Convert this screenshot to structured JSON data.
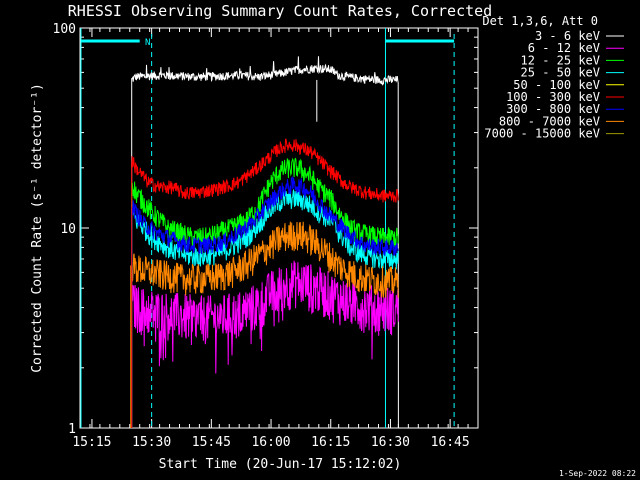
{
  "chart_data": {
    "type": "line",
    "title": "RHESSI Observing Summary Count Rates, Corrected",
    "xlabel": "Start Time (20-Jun-17 15:12:02)",
    "ylabel": "Corrected Count Rate (s⁻¹ detector⁻¹)",
    "yscale": "log",
    "ylim": [
      1,
      100
    ],
    "xlim_minutes": [
      0,
      100
    ],
    "x_tick_labels": [
      "15:15",
      "15:30",
      "15:45",
      "16:00",
      "16:15",
      "16:30",
      "16:45"
    ],
    "y_tick_labels": [
      "1",
      "10",
      "100"
    ],
    "legend_header": "Det 1,3,6, Att 0",
    "footer_date": "1-Sep-2022 08:22",
    "night_marker": "N",
    "x_start_minute": 13,
    "x_end_minute": 80,
    "series": [
      {
        "name": "3 - 6 keV",
        "color": "#ffffff",
        "x": [
          13,
          14,
          20,
          30,
          40,
          45,
          50,
          55,
          60,
          63,
          65,
          70,
          75,
          80
        ],
        "y": [
          55,
          57,
          58,
          57,
          58,
          57,
          59,
          62,
          63,
          62,
          58,
          56,
          55,
          55
        ]
      },
      {
        "name": "6 - 12 keV",
        "color": "#ff00ff",
        "x": [
          13,
          15,
          20,
          25,
          30,
          35,
          40,
          45,
          48,
          52,
          55,
          58,
          60,
          65,
          70,
          75,
          80
        ],
        "y": [
          4.2,
          4.0,
          3.8,
          3.7,
          3.6,
          3.6,
          3.8,
          4.2,
          4.8,
          5.3,
          5.5,
          5.2,
          5.0,
          4.5,
          4.2,
          4.0,
          4.0
        ]
      },
      {
        "name": "12 - 25 keV",
        "color": "#00ff00",
        "x": [
          13,
          14,
          18,
          22,
          25,
          28,
          32,
          35,
          38,
          42,
          45,
          48,
          50,
          52,
          55,
          58,
          60,
          63,
          65,
          68,
          70,
          75,
          80
        ],
        "y": [
          17,
          15,
          12,
          10,
          9.5,
          9,
          9,
          9.5,
          10,
          11,
          13,
          17,
          19,
          20,
          20,
          18,
          16,
          14,
          12,
          10,
          9.5,
          9,
          9
        ]
      },
      {
        "name": "25 - 50 keV",
        "color": "#00ffff",
        "x": [
          13,
          14,
          18,
          22,
          25,
          28,
          32,
          35,
          38,
          42,
          45,
          48,
          50,
          52,
          55,
          58,
          60,
          63,
          65,
          68,
          70,
          75,
          80
        ],
        "y": [
          12,
          11,
          9,
          8,
          7.5,
          7.2,
          7.2,
          7.5,
          8,
          9,
          10.5,
          12.5,
          13.5,
          14,
          14,
          13,
          12,
          11,
          9.5,
          8,
          7.5,
          7,
          7
        ]
      },
      {
        "name": "50 - 100 keV",
        "color": "#ffff00",
        "x": [
          13,
          80
        ],
        "y": [
          6.5,
          6.5
        ]
      },
      {
        "name": "100 - 300 keV",
        "color": "#ff0000",
        "x": [
          13,
          14,
          17,
          20,
          23,
          26,
          29,
          33,
          36,
          40,
          44,
          48,
          50,
          52,
          54,
          56,
          58,
          60,
          62,
          64,
          66,
          68,
          70,
          72,
          76,
          80
        ],
        "y": [
          22,
          20,
          17,
          16,
          16,
          15,
          15,
          15.5,
          16,
          17,
          19.5,
          23,
          25,
          26,
          26,
          25,
          24,
          22,
          20,
          18.5,
          17,
          16,
          15.5,
          15,
          14.5,
          14.5
        ]
      },
      {
        "name": "300 - 800 keV",
        "color": "#0000ff",
        "x": [
          13,
          14,
          16,
          19,
          22,
          25,
          28,
          32,
          36,
          40,
          44,
          47,
          50,
          52,
          54,
          56,
          58,
          60,
          62,
          64,
          66,
          68,
          70,
          72,
          76,
          80
        ],
        "y": [
          13,
          12,
          10.5,
          9.5,
          9,
          8.5,
          8.2,
          8.2,
          8.5,
          9.5,
          11,
          13,
          15,
          16,
          16.5,
          16,
          15,
          13.5,
          12,
          11,
          10,
          9.2,
          8.6,
          8.2,
          8,
          8
        ]
      },
      {
        "name": "800 - 7000 keV",
        "color": "#ff8800",
        "x": [
          13,
          14,
          18,
          22,
          26,
          30,
          34,
          38,
          42,
          46,
          50,
          52,
          54,
          56,
          58,
          60,
          62,
          64,
          66,
          68,
          70,
          74,
          80
        ],
        "y": [
          6.5,
          6.3,
          6,
          5.8,
          5.6,
          5.6,
          5.7,
          6,
          6.6,
          7.6,
          8.8,
          9.2,
          9.3,
          9.2,
          8.8,
          8.2,
          7.5,
          6.8,
          6.3,
          6,
          5.7,
          5.5,
          5.4
        ]
      },
      {
        "name": "7000 - 15000 keV",
        "color": "#999900",
        "x": [],
        "y": []
      }
    ]
  },
  "x_tick_minutes": [
    3,
    18,
    33,
    48,
    63,
    78,
    93
  ],
  "aux_lines": {
    "solid_cyan_minutes": [
      0,
      76.5
    ],
    "dashed_cyan_minutes": [
      18,
      94
    ],
    "black_edge_minutes": [
      13,
      80
    ]
  }
}
